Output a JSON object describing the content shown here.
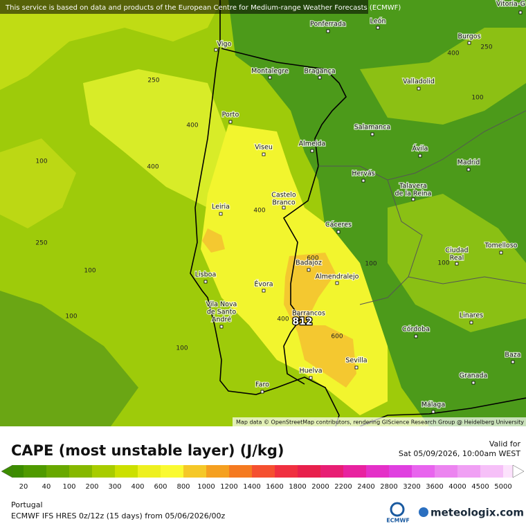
{
  "map": {
    "notice": "This service is based on data and products of the European Centre for Medium-range Weather Forecasts (ECMWF)",
    "attribution": "Map data © OpenStreetMap contributors, rendering GIScience Research Group @ Heidelberg University",
    "max_value": 812,
    "cities": [
      [
        "Vitoria-G"
      ],
      [
        "Ponferrada"
      ],
      [
        "León"
      ],
      [
        "Vigo"
      ],
      [
        "Burgos"
      ],
      [
        "Montalegre"
      ],
      [
        "Bragança"
      ],
      [
        "Valladolid"
      ],
      [
        "Porto"
      ],
      [
        "Salamanca"
      ],
      [
        "Viseu"
      ],
      [
        "Almeida"
      ],
      [
        "Ávila"
      ],
      [
        "Madrid"
      ],
      [
        "Hervás"
      ],
      [
        "Castelo",
        "Branco"
      ],
      [
        "Talavera",
        "de la Reina"
      ],
      [
        "Leiria"
      ],
      [
        "Cáceres"
      ],
      [
        "Ciudad",
        "Real"
      ],
      [
        "Tomelloso"
      ],
      [
        "Badajoz"
      ],
      [
        "Almendralejo"
      ],
      [
        "Lisboa"
      ],
      [
        "Évora"
      ],
      [
        "Vila Nova",
        "de Santo",
        "André"
      ],
      [
        "Barrancos"
      ],
      [
        "Linares"
      ],
      [
        "Córdoba"
      ],
      [
        "Baza"
      ],
      [
        "Sevilla"
      ],
      [
        "Huelva"
      ],
      [
        "Granada"
      ],
      [
        "Faro"
      ],
      [
        "Málaga"
      ]
    ],
    "contour_labels": [
      250,
      400,
      100,
      250,
      100,
      100,
      100,
      400,
      600,
      400,
      600,
      100,
      400,
      250,
      100,
      100,
      400
    ]
  },
  "legend": {
    "title": "CAPE (most unstable layer) (J/kg)",
    "valid_label": "Valid for",
    "valid_time": "Sat 05/09/2026, 10:00am WEST",
    "labels": [
      20,
      40,
      100,
      200,
      300,
      400,
      600,
      800,
      1000,
      1200,
      1400,
      1600,
      1800,
      2000,
      2200,
      2400,
      2800,
      3200,
      3600,
      4000,
      4500,
      5000
    ],
    "colors": [
      "#3c8c00",
      "#4f9a00",
      "#68a800",
      "#86b800",
      "#a8cc00",
      "#cce000",
      "#eef020",
      "#fafa32",
      "#f5c828",
      "#f5a020",
      "#f57a20",
      "#f55030",
      "#f03040",
      "#e8204c",
      "#e81e74",
      "#e822a0",
      "#e430c8",
      "#e040e0",
      "#e864ee",
      "#ec84f0",
      "#f0a0f4",
      "#f6c0f8",
      "#fce2fc"
    ]
  },
  "footer": {
    "region": "Portugal",
    "model": "ECMWF IFS HRES 0z/12z (15 days) from 05/06/2026/00z",
    "ecmwf": "ECMWF",
    "brand": "meteologix.com"
  }
}
